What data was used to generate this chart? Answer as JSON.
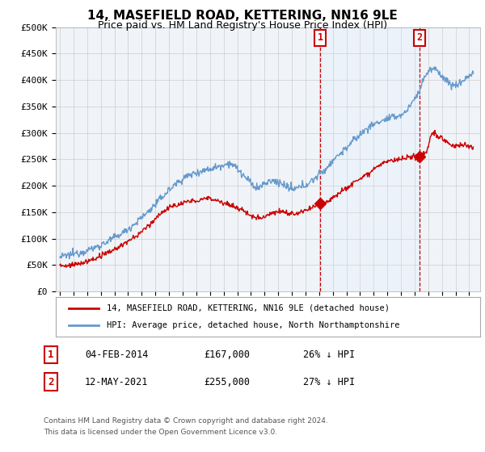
{
  "title": "14, MASEFIELD ROAD, KETTERING, NN16 9LE",
  "subtitle": "Price paid vs. HM Land Registry's House Price Index (HPI)",
  "ytick_labels": [
    "£0",
    "£50K",
    "£100K",
    "£150K",
    "£200K",
    "£250K",
    "£300K",
    "£350K",
    "£400K",
    "£450K",
    "£500K"
  ],
  "ytick_values": [
    0,
    50000,
    100000,
    150000,
    200000,
    250000,
    300000,
    350000,
    400000,
    450000,
    500000
  ],
  "ylim": [
    0,
    500000
  ],
  "xlim_start": 1994.7,
  "xlim_end": 2025.8,
  "sale1_x": 2014.09,
  "sale1_y": 167000,
  "sale1_label": "1",
  "sale1_date": "04-FEB-2014",
  "sale1_price": "£167,000",
  "sale1_pct": "26% ↓ HPI",
  "sale2_x": 2021.36,
  "sale2_y": 255000,
  "sale2_label": "2",
  "sale2_date": "12-MAY-2021",
  "sale2_price": "£255,000",
  "sale2_pct": "27% ↓ HPI",
  "red_line_color": "#cc0000",
  "blue_line_color": "#6699cc",
  "shade_color": "#ddeeff",
  "vline_color": "#cc0000",
  "legend_label_red": "14, MASEFIELD ROAD, KETTERING, NN16 9LE (detached house)",
  "legend_label_blue": "HPI: Average price, detached house, North Northamptonshire",
  "footer1": "Contains HM Land Registry data © Crown copyright and database right 2024.",
  "footer2": "This data is licensed under the Open Government Licence v3.0.",
  "bg_color": "#ffffff",
  "plot_bg_color": "#f0f4f8"
}
